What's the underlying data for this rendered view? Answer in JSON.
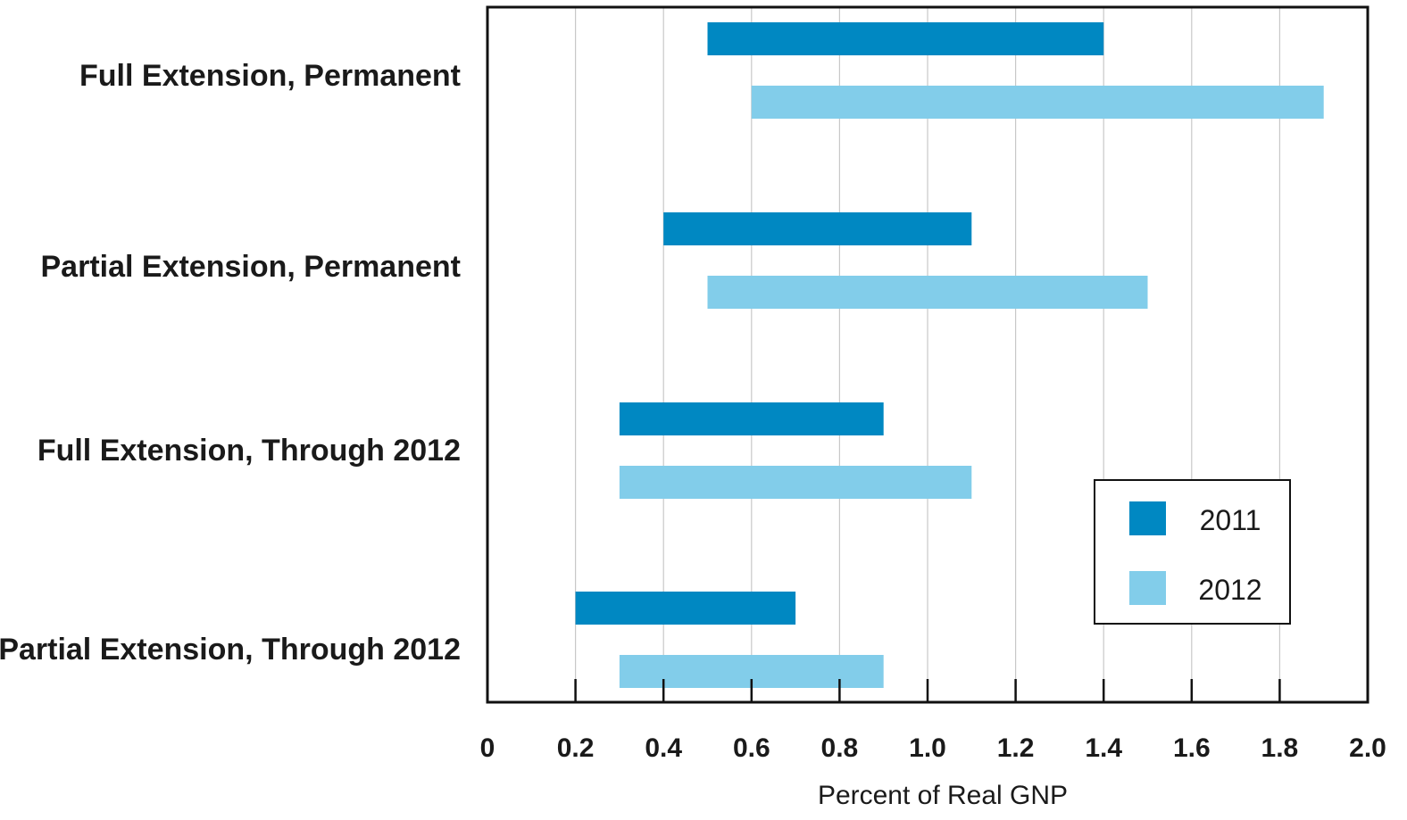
{
  "chart_data": {
    "type": "bar",
    "orientation": "horizontal",
    "bar_style": "floating-range",
    "categories": [
      "Full Extension, Permanent",
      "Partial Extension, Permanent",
      "Full Extension, Through 2012",
      "Partial Extension, Through 2012"
    ],
    "series": [
      {
        "name": "2011",
        "color": "#0088c2",
        "ranges": [
          [
            0.5,
            1.4
          ],
          [
            0.4,
            1.1
          ],
          [
            0.3,
            0.9
          ],
          [
            0.2,
            0.7
          ]
        ]
      },
      {
        "name": "2012",
        "color": "#82cdea",
        "ranges": [
          [
            0.6,
            1.9
          ],
          [
            0.5,
            1.5
          ],
          [
            0.3,
            1.1
          ],
          [
            0.3,
            0.9
          ]
        ]
      }
    ],
    "xlabel": "Percent of Real GNP",
    "ylabel": "",
    "xlim": [
      0,
      2.0
    ],
    "xticks": [
      "0",
      "0.2",
      "0.4",
      "0.6",
      "0.8",
      "1.0",
      "1.2",
      "1.4",
      "1.6",
      "1.8",
      "2.0"
    ],
    "grid": "vertical",
    "legend_position": "bottom-right",
    "title": ""
  }
}
